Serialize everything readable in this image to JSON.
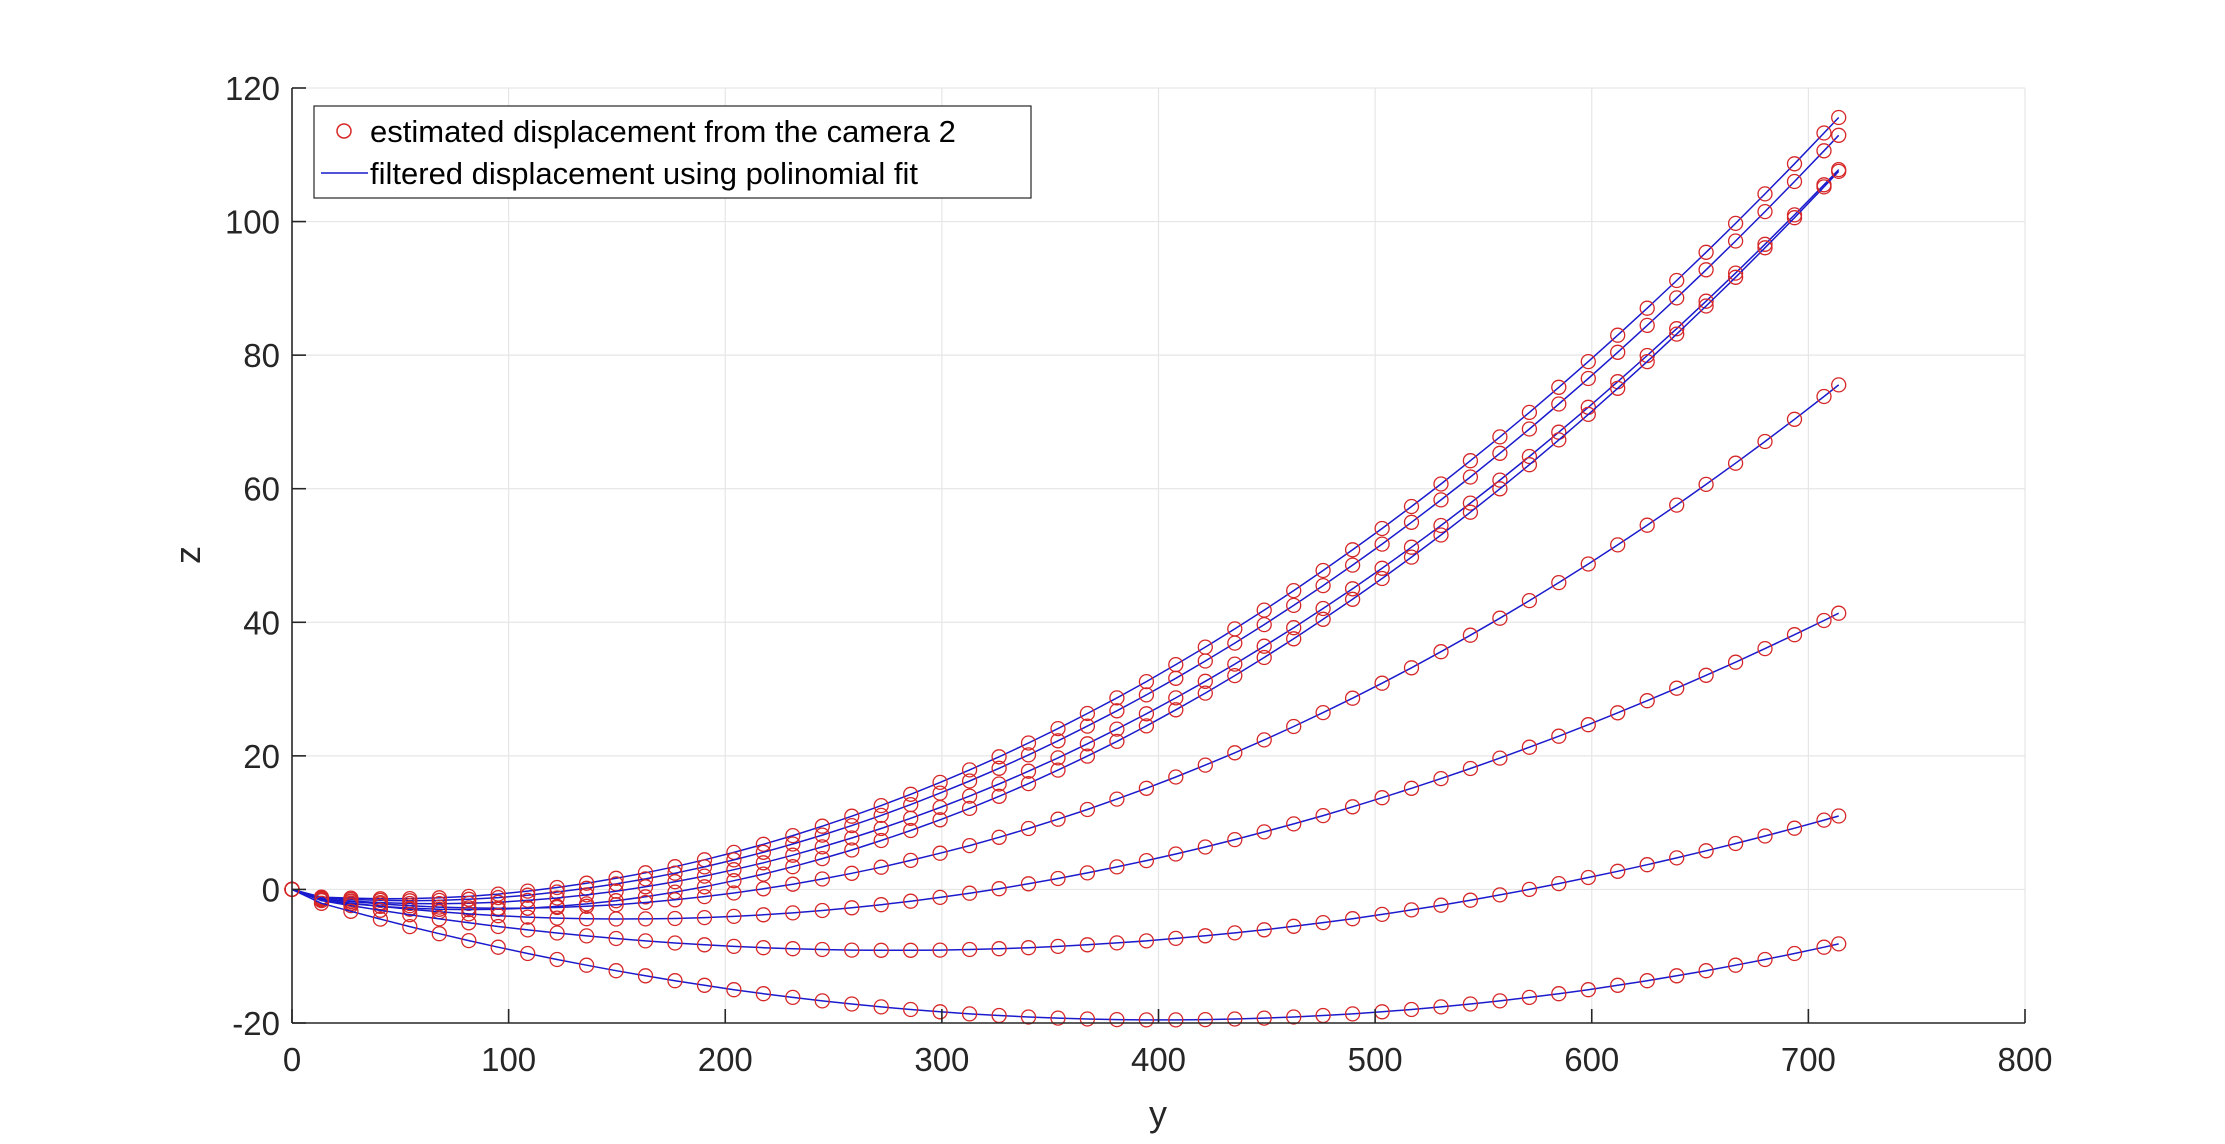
{
  "chart_data": {
    "type": "scatter",
    "xlabel": "y",
    "ylabel": "z",
    "xlim": [
      0,
      800
    ],
    "ylim": [
      -20,
      120
    ],
    "xticks": [
      "0",
      "100",
      "200",
      "300",
      "400",
      "500",
      "600",
      "700",
      "800"
    ],
    "yticks": [
      "-20",
      "0",
      "20",
      "40",
      "60",
      "80",
      "100",
      "120"
    ],
    "grid": true,
    "legend_position": "top-left",
    "legend": {
      "markers_label": "estimated displacement  from the camera 2",
      "line_label": "filtered displacement using polinomial fit"
    },
    "colors": {
      "marker": "#d62728",
      "fit_line": "#1a1acd",
      "grid": "#e6e6e6",
      "axis": "#262626"
    },
    "x": [
      0,
      13.6,
      27.2,
      40.8,
      54.4,
      68,
      81.6,
      95.2,
      108.8,
      122.4,
      136,
      149.6,
      163.2,
      176.8,
      190.4,
      204,
      217.6,
      231.2,
      244.8,
      258.4,
      272,
      285.6,
      299.2,
      312.8,
      326.4,
      340,
      353.6,
      367.2,
      380.8,
      394.4,
      408,
      421.6,
      435.2,
      448.8,
      462.4,
      476,
      489.6,
      503.2,
      516.8,
      530.4,
      544,
      557.6,
      571.2,
      584.8,
      598.4,
      612,
      625.6,
      639.2,
      652.8,
      666.4,
      680,
      693.6,
      707.2,
      714
    ],
    "series": [
      {
        "values": [
          0,
          -1.15,
          -1.3,
          -1.4,
          -1.38,
          -1.26,
          -1.04,
          -0.7,
          -0.25,
          0.29,
          0.93,
          1.66,
          2.49,
          3.41,
          4.43,
          5.55,
          6.76,
          8.06,
          9.46,
          10.96,
          12.55,
          14.24,
          16.02,
          17.89,
          19.86,
          21.93,
          24.08,
          26.34,
          28.68,
          31.12,
          33.66,
          36.29,
          39.01,
          41.83,
          44.74,
          47.75,
          50.85,
          54.04,
          57.33,
          60.71,
          64.19,
          67.76,
          71.43,
          75.19,
          79.04,
          82.99,
          87.03,
          91.17,
          95.4,
          99.72,
          104.14,
          108.65,
          113.26,
          115.59
        ]
      },
      {
        "values": [
          0,
          -1.26,
          -1.49,
          -1.65,
          -1.7,
          -1.64,
          -1.48,
          -1.22,
          -0.86,
          -0.39,
          0.17,
          0.83,
          1.58,
          2.43,
          3.38,
          4.42,
          5.56,
          6.8,
          8.13,
          9.56,
          11.08,
          12.7,
          14.42,
          16.23,
          18.14,
          20.15,
          22.25,
          24.45,
          26.74,
          29.13,
          31.62,
          34.2,
          36.88,
          39.66,
          42.53,
          45.49,
          48.56,
          51.71,
          54.97,
          58.32,
          61.76,
          65.31,
          68.94,
          72.68,
          76.51,
          80.43,
          84.45,
          88.57,
          92.78,
          97.09,
          101.5,
          106.0,
          110.59,
          112.92
        ]
      },
      {
        "values": [
          0,
          -1.4,
          -1.73,
          -1.97,
          -2.11,
          -2.14,
          -2.08,
          -1.92,
          -1.65,
          -1.29,
          -0.82,
          -0.26,
          0.4,
          1.15,
          2.0,
          2.95,
          3.99,
          5.13,
          6.37,
          7.7,
          9.12,
          10.65,
          12.27,
          13.98,
          15.79,
          17.7,
          19.7,
          21.8,
          24.0,
          26.29,
          28.68,
          31.16,
          33.74,
          36.42,
          39.19,
          42.06,
          45.02,
          48.08,
          51.24,
          54.49,
          57.84,
          61.29,
          64.83,
          68.46,
          72.19,
          76.02,
          79.94,
          83.96,
          88.08,
          92.29,
          96.6,
          101.0,
          105.5,
          107.78
        ]
      },
      {
        "values": [
          0,
          -1.65,
          -2.14,
          -2.53,
          -2.8,
          -2.97,
          -3.02,
          -2.97,
          -2.81,
          -2.54,
          -2.17,
          -1.69,
          -1.1,
          -0.4,
          0.4,
          1.3,
          2.3,
          3.4,
          4.61,
          5.91,
          7.32,
          8.82,
          10.43,
          12.14,
          13.94,
          15.85,
          17.86,
          19.97,
          22.17,
          24.48,
          26.89,
          29.4,
          32.01,
          34.72,
          37.53,
          40.44,
          43.44,
          46.55,
          49.76,
          53.07,
          56.48,
          59.99,
          63.6,
          67.31,
          71.12,
          75.03,
          79.04,
          83.15,
          87.36,
          91.66,
          96.07,
          100.58,
          105.19,
          107.51
        ]
      },
      {
        "values": [
          0,
          -1.38,
          -1.81,
          -2.16,
          -2.44,
          -2.64,
          -2.77,
          -2.82,
          -2.8,
          -2.7,
          -2.53,
          -2.28,
          -1.96,
          -1.56,
          -1.08,
          -0.53,
          0.09,
          0.79,
          1.56,
          2.41,
          3.33,
          4.34,
          5.42,
          6.57,
          7.81,
          9.12,
          10.51,
          11.97,
          13.52,
          15.14,
          16.83,
          18.61,
          20.46,
          22.39,
          24.39,
          26.48,
          28.64,
          30.88,
          33.19,
          35.59,
          38.06,
          40.61,
          43.24,
          45.94,
          48.73,
          51.59,
          54.53,
          57.55,
          60.64,
          63.82,
          67.07,
          70.4,
          73.81,
          75.54
        ]
      },
      {
        "values": [
          0,
          -1.5,
          -2.04,
          -2.53,
          -2.96,
          -3.34,
          -3.66,
          -3.93,
          -4.14,
          -4.29,
          -4.39,
          -4.43,
          -4.42,
          -4.35,
          -4.22,
          -4.04,
          -3.8,
          -3.51,
          -3.16,
          -2.75,
          -2.29,
          -1.77,
          -1.2,
          -0.57,
          0.11,
          0.85,
          1.64,
          2.48,
          3.37,
          4.31,
          5.31,
          6.36,
          7.46,
          8.61,
          9.81,
          11.06,
          12.37,
          13.73,
          15.14,
          16.6,
          18.11,
          19.67,
          21.29,
          22.95,
          24.67,
          26.44,
          28.26,
          30.13,
          32.06,
          34.03,
          36.06,
          38.14,
          40.27,
          41.36
        ]
      },
      {
        "values": [
          0,
          -1.68,
          -2.42,
          -3.13,
          -3.79,
          -4.42,
          -5.0,
          -5.55,
          -6.06,
          -6.53,
          -6.96,
          -7.35,
          -7.71,
          -8.02,
          -8.29,
          -8.53,
          -8.73,
          -8.88,
          -9.0,
          -9.08,
          -9.12,
          -9.12,
          -9.08,
          -9.0,
          -8.88,
          -8.72,
          -8.53,
          -8.29,
          -8.01,
          -7.7,
          -7.34,
          -6.95,
          -6.51,
          -6.04,
          -5.52,
          -4.97,
          -4.38,
          -3.74,
          -3.07,
          -2.36,
          -1.61,
          -0.82,
          0.01,
          0.88,
          1.78,
          2.72,
          3.7,
          4.72,
          5.78,
          6.87,
          8.0,
          9.17,
          10.38,
          10.99
        ]
      },
      {
        "values": [
          0,
          -2.08,
          -3.28,
          -4.44,
          -5.56,
          -6.63,
          -7.66,
          -8.65,
          -9.59,
          -10.49,
          -11.35,
          -12.17,
          -12.94,
          -13.67,
          -14.36,
          -15.01,
          -15.61,
          -16.17,
          -16.69,
          -17.16,
          -17.59,
          -17.98,
          -18.32,
          -18.63,
          -18.88,
          -19.1,
          -19.27,
          -19.4,
          -19.49,
          -19.53,
          -19.53,
          -19.49,
          -19.4,
          -19.27,
          -19.1,
          -18.88,
          -18.63,
          -18.32,
          -17.98,
          -17.59,
          -17.16,
          -16.69,
          -16.17,
          -15.61,
          -15.01,
          -14.36,
          -13.67,
          -12.94,
          -12.17,
          -11.35,
          -10.49,
          -9.59,
          -8.65,
          -8.16
        ]
      }
    ]
  }
}
